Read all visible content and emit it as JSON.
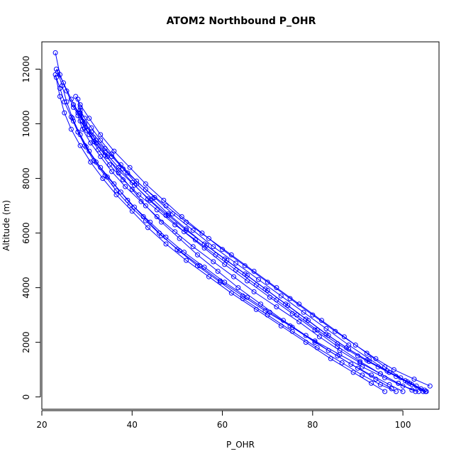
{
  "chart_data": {
    "type": "line",
    "title": "ATOM2 Northbound P_OHR",
    "xlabel": "P_OHR",
    "ylabel": "Altitude (m)",
    "xlim": [
      20,
      108
    ],
    "ylim": [
      -450,
      13000
    ],
    "xticks": [
      20,
      40,
      60,
      80,
      100
    ],
    "yticks": [
      0,
      2000,
      4000,
      6000,
      8000,
      10000,
      12000
    ],
    "grid": false,
    "legend": "none",
    "color": "#0000ff",
    "marker": "open-circle",
    "series": [
      {
        "values": [
          [
            105.2,
            200
          ],
          [
            103.0,
            400
          ],
          [
            99.5,
            700
          ],
          [
            96.0,
            1100
          ],
          [
            92.0,
            1600
          ],
          [
            87.0,
            2200
          ],
          [
            82.0,
            2800
          ],
          [
            77.0,
            3400
          ],
          [
            72.0,
            4000
          ],
          [
            67.0,
            4600
          ],
          [
            62.0,
            5200
          ],
          [
            57.0,
            5800
          ],
          [
            52.0,
            6400
          ],
          [
            47.5,
            7000
          ],
          [
            43.0,
            7600
          ],
          [
            39.0,
            8200
          ],
          [
            35.5,
            8800
          ],
          [
            32.0,
            9400
          ],
          [
            29.5,
            10000
          ],
          [
            27.0,
            10600
          ],
          [
            25.5,
            11200
          ],
          [
            24.0,
            11800
          ],
          [
            23.0,
            12600
          ]
        ]
      },
      {
        "values": [
          [
            104.5,
            200
          ],
          [
            101.5,
            500
          ],
          [
            97.0,
            900
          ],
          [
            92.5,
            1400
          ],
          [
            88.0,
            1900
          ],
          [
            83.0,
            2500
          ],
          [
            78.0,
            3100
          ],
          [
            73.0,
            3700
          ],
          [
            68.0,
            4300
          ],
          [
            63.0,
            4900
          ],
          [
            58.0,
            5500
          ],
          [
            53.5,
            6100
          ],
          [
            49.0,
            6700
          ],
          [
            45.0,
            7300
          ],
          [
            41.0,
            7900
          ],
          [
            37.5,
            8500
          ],
          [
            34.0,
            9100
          ],
          [
            31.0,
            9700
          ],
          [
            28.5,
            10300
          ],
          [
            26.5,
            10900
          ],
          [
            24.8,
            11500
          ],
          [
            23.2,
            12000
          ]
        ]
      },
      {
        "values": [
          [
            96.0,
            200
          ],
          [
            93.0,
            500
          ],
          [
            89.0,
            900
          ],
          [
            84.0,
            1400
          ],
          [
            78.5,
            2000
          ],
          [
            73.0,
            2600
          ],
          [
            67.5,
            3200
          ],
          [
            62.0,
            3800
          ],
          [
            57.0,
            4400
          ],
          [
            52.0,
            5000
          ],
          [
            47.5,
            5600
          ],
          [
            43.5,
            6200
          ],
          [
            40.0,
            6800
          ],
          [
            36.5,
            7400
          ],
          [
            33.5,
            8000
          ],
          [
            30.8,
            8600
          ],
          [
            28.5,
            9200
          ],
          [
            26.5,
            9800
          ],
          [
            25.0,
            10400
          ],
          [
            24.0,
            11000
          ],
          [
            23.0,
            11800
          ]
        ]
      },
      {
        "values": [
          [
            106.0,
            400
          ],
          [
            102.5,
            650
          ],
          [
            98.0,
            1000
          ],
          [
            94.0,
            1400
          ],
          [
            89.5,
            1900
          ],
          [
            85.0,
            2400
          ],
          [
            80.0,
            3000
          ],
          [
            75.0,
            3600
          ],
          [
            70.0,
            4200
          ],
          [
            65.0,
            4800
          ],
          [
            60.0,
            5400
          ],
          [
            55.5,
            6000
          ],
          [
            51.0,
            6600
          ],
          [
            47.0,
            7200
          ],
          [
            43.0,
            7800
          ],
          [
            39.5,
            8400
          ],
          [
            36.0,
            9000
          ],
          [
            33.0,
            9600
          ],
          [
            30.5,
            10200
          ],
          [
            28.5,
            10700
          ],
          [
            27.5,
            11000
          ]
        ]
      },
      {
        "values": [
          [
            98.5,
            200
          ],
          [
            95.0,
            450
          ],
          [
            91.0,
            800
          ],
          [
            86.5,
            1250
          ],
          [
            81.0,
            1800
          ],
          [
            75.5,
            2400
          ],
          [
            70.0,
            3000
          ],
          [
            64.5,
            3600
          ],
          [
            59.5,
            4200
          ],
          [
            54.5,
            4800
          ],
          [
            50.0,
            5400
          ],
          [
            46.0,
            6000
          ],
          [
            42.5,
            6600
          ],
          [
            39.0,
            7200
          ],
          [
            36.0,
            7800
          ],
          [
            33.0,
            8400
          ],
          [
            30.5,
            9000
          ],
          [
            28.5,
            9600
          ],
          [
            26.8,
            10200
          ],
          [
            25.5,
            10800
          ],
          [
            24.5,
            11400
          ],
          [
            23.5,
            11900
          ]
        ]
      },
      {
        "values": [
          [
            102.0,
            250
          ],
          [
            99.0,
            500
          ],
          [
            95.0,
            850
          ],
          [
            90.5,
            1300
          ],
          [
            85.5,
            1850
          ],
          [
            80.5,
            2450
          ],
          [
            75.5,
            3050
          ],
          [
            70.5,
            3650
          ],
          [
            65.5,
            4250
          ],
          [
            60.5,
            4850
          ],
          [
            56.0,
            5450
          ],
          [
            51.5,
            6050
          ],
          [
            47.5,
            6650
          ],
          [
            43.5,
            7250
          ],
          [
            40.0,
            7850
          ],
          [
            37.0,
            8400
          ],
          [
            34.0,
            8950
          ],
          [
            31.5,
            9500
          ],
          [
            29.5,
            10000
          ],
          [
            28.0,
            10400
          ],
          [
            27.0,
            10700
          ]
        ]
      },
      {
        "values": [
          [
            104.0,
            300
          ],
          [
            100.5,
            600
          ],
          [
            96.5,
            950
          ],
          [
            92.0,
            1350
          ],
          [
            87.5,
            1800
          ],
          [
            83.0,
            2300
          ],
          [
            78.5,
            2850
          ],
          [
            74.0,
            3400
          ],
          [
            69.5,
            3950
          ],
          [
            65.0,
            4500
          ],
          [
            60.5,
            5050
          ],
          [
            56.0,
            5600
          ],
          [
            52.0,
            6150
          ],
          [
            48.0,
            6700
          ],
          [
            44.5,
            7250
          ],
          [
            41.0,
            7800
          ],
          [
            38.0,
            8350
          ],
          [
            35.5,
            8900
          ],
          [
            33.0,
            9400
          ],
          [
            31.0,
            9850
          ],
          [
            29.5,
            10200
          ],
          [
            28.5,
            10500
          ]
        ]
      },
      {
        "values": [
          [
            100.0,
            200
          ],
          [
            97.0,
            450
          ],
          [
            93.0,
            800
          ],
          [
            88.5,
            1200
          ],
          [
            83.5,
            1700
          ],
          [
            78.5,
            2250
          ],
          [
            73.5,
            2800
          ],
          [
            68.5,
            3400
          ],
          [
            63.5,
            4000
          ],
          [
            59.0,
            4600
          ],
          [
            54.5,
            5200
          ],
          [
            50.5,
            5800
          ],
          [
            46.5,
            6400
          ],
          [
            43.0,
            7000
          ],
          [
            40.0,
            7600
          ],
          [
            37.0,
            8200
          ],
          [
            34.5,
            8800
          ],
          [
            32.0,
            9300
          ],
          [
            30.0,
            9750
          ],
          [
            28.5,
            10100
          ]
        ]
      },
      {
        "values": [
          [
            103.5,
            200
          ],
          [
            100.0,
            400
          ],
          [
            96.0,
            700
          ],
          [
            91.0,
            1100
          ],
          [
            86.0,
            1550
          ],
          [
            80.5,
            2050
          ],
          [
            75.0,
            2600
          ],
          [
            69.5,
            3150
          ],
          [
            64.5,
            3700
          ],
          [
            59.5,
            4250
          ],
          [
            55.0,
            4800
          ],
          [
            50.5,
            5350
          ],
          [
            46.5,
            5900
          ],
          [
            43.0,
            6450
          ],
          [
            39.5,
            7000
          ],
          [
            36.5,
            7550
          ],
          [
            34.0,
            8100
          ],
          [
            31.5,
            8650
          ],
          [
            29.5,
            9200
          ],
          [
            28.0,
            9700
          ],
          [
            27.0,
            10100
          ]
        ]
      },
      {
        "values": [
          [
            105.0,
            200
          ],
          [
            102.0,
            450
          ],
          [
            98.5,
            750
          ],
          [
            94.5,
            1100
          ],
          [
            90.0,
            1500
          ],
          [
            85.5,
            1950
          ],
          [
            81.0,
            2450
          ],
          [
            76.5,
            3000
          ],
          [
            72.0,
            3550
          ],
          [
            67.5,
            4100
          ],
          [
            63.0,
            4650
          ],
          [
            58.5,
            5200
          ],
          [
            54.0,
            5750
          ],
          [
            49.5,
            6300
          ],
          [
            45.5,
            6850
          ],
          [
            41.5,
            7400
          ],
          [
            38.0,
            7950
          ],
          [
            35.0,
            8500
          ],
          [
            32.5,
            9050
          ],
          [
            30.5,
            9600
          ],
          [
            29.0,
            10100
          ],
          [
            28.5,
            10600
          ]
        ]
      },
      {
        "values": [
          [
            97.5,
            300
          ],
          [
            94.0,
            650
          ],
          [
            90.0,
            1050
          ],
          [
            85.5,
            1500
          ],
          [
            80.5,
            2000
          ],
          [
            75.5,
            2550
          ],
          [
            70.5,
            3100
          ],
          [
            65.5,
            3650
          ],
          [
            60.5,
            4200
          ],
          [
            56.0,
            4750
          ],
          [
            51.5,
            5300
          ],
          [
            47.5,
            5850
          ],
          [
            44.0,
            6400
          ],
          [
            40.5,
            6950
          ],
          [
            37.5,
            7500
          ],
          [
            34.5,
            8050
          ],
          [
            32.0,
            8600
          ],
          [
            29.8,
            9150
          ],
          [
            28.0,
            9700
          ],
          [
            26.5,
            10250
          ],
          [
            25.0,
            10800
          ],
          [
            24.0,
            11300
          ],
          [
            23.2,
            11700
          ]
        ]
      },
      {
        "values": [
          [
            102.8,
            200
          ],
          [
            99.0,
            500
          ],
          [
            95.0,
            850
          ],
          [
            90.5,
            1250
          ],
          [
            86.0,
            1700
          ],
          [
            81.5,
            2200
          ],
          [
            77.0,
            2750
          ],
          [
            72.0,
            3300
          ],
          [
            67.0,
            3850
          ],
          [
            62.5,
            4400
          ],
          [
            58.0,
            4950
          ],
          [
            53.5,
            5500
          ],
          [
            49.5,
            6050
          ],
          [
            45.5,
            6600
          ],
          [
            42.0,
            7150
          ],
          [
            38.5,
            7700
          ],
          [
            35.5,
            8250
          ],
          [
            33.0,
            8800
          ],
          [
            30.8,
            9300
          ],
          [
            29.0,
            9800
          ],
          [
            28.0,
            10300
          ]
        ]
      },
      {
        "values": [
          [
            104.8,
            250
          ],
          [
            101.0,
            550
          ],
          [
            97.0,
            900
          ],
          [
            92.5,
            1300
          ],
          [
            88.0,
            1750
          ],
          [
            83.5,
            2250
          ],
          [
            79.0,
            2800
          ],
          [
            74.5,
            3350
          ],
          [
            70.0,
            3900
          ],
          [
            65.5,
            4450
          ],
          [
            61.0,
            5000
          ],
          [
            56.5,
            5550
          ],
          [
            52.0,
            6100
          ],
          [
            48.0,
            6650
          ],
          [
            44.0,
            7200
          ],
          [
            40.5,
            7750
          ],
          [
            37.0,
            8300
          ],
          [
            34.0,
            8850
          ],
          [
            31.5,
            9350
          ],
          [
            29.5,
            9850
          ],
          [
            28.5,
            10400
          ],
          [
            28.0,
            10900
          ]
        ]
      }
    ]
  }
}
